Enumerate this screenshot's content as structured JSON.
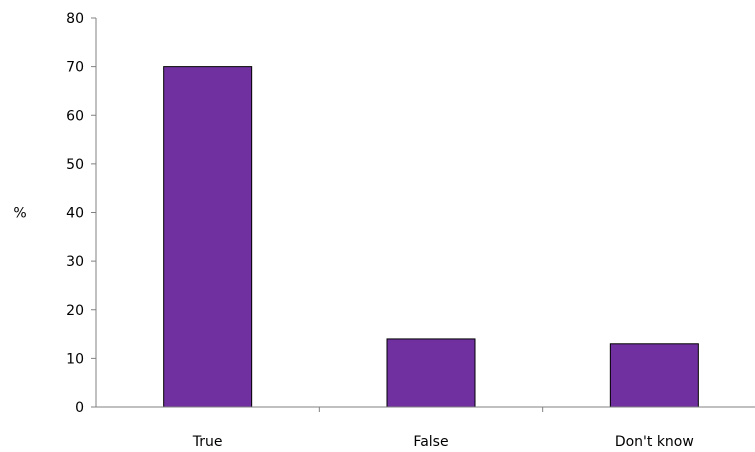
{
  "chart_data": {
    "type": "bar",
    "title": "",
    "xlabel": "",
    "ylabel": "%",
    "categories": [
      "True",
      "False",
      "Don't know"
    ],
    "values": [
      70,
      14,
      13
    ],
    "ylim": [
      0,
      80
    ],
    "yticks": [
      0,
      10,
      20,
      30,
      40,
      50,
      60,
      70,
      80
    ],
    "grid": false,
    "bar_color": "#7030A0",
    "bar_edge_color": "#000000"
  }
}
